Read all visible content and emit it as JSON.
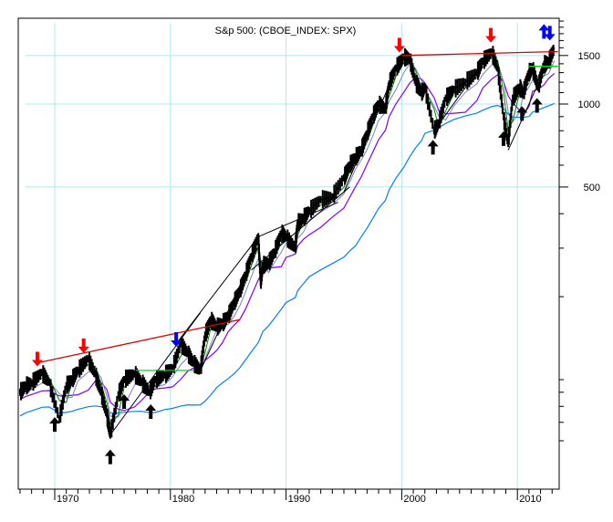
{
  "chart_data": {
    "type": "line",
    "title": "S&p 500: (CBOE_INDEX: SPX)",
    "xlabel": "",
    "ylabel": "",
    "y_scale": "log",
    "ylim": [
      40,
      2050
    ],
    "xlim": [
      1966.9,
      2013.5
    ],
    "grid": true,
    "x_tick_labels": [
      "1970",
      "1980",
      "1990",
      "2000",
      "2010"
    ],
    "y_tick_labels": [
      "1500",
      "1000",
      "500"
    ],
    "x_ticks": [
      1970,
      1980,
      1990,
      2000,
      2010
    ],
    "y_ticks": [
      1500,
      1000,
      500
    ],
    "colors": {
      "price": "#000000",
      "ma_short": "#008000",
      "ma_medium": "#8080c0",
      "ma_long": "#8000ff",
      "ma_very_long": "#0080ff",
      "resistance_line": "#e00000",
      "support_line_green": "#00e000",
      "trend_lines": "#000000",
      "grid": "#b0e8f0",
      "arrow_red": "#ff0000",
      "arrow_blue": "#0000ff",
      "arrow_black": "#000000"
    },
    "series": [
      {
        "name": "SPX price",
        "x": [
          1967.0,
          1967.5,
          1968.0,
          1968.9,
          1969.5,
          1970.4,
          1971.0,
          1971.5,
          1972.0,
          1972.9,
          1973.5,
          1974.0,
          1974.5,
          1974.8,
          1975.5,
          1976.0,
          1976.9,
          1977.5,
          1978.2,
          1978.7,
          1979.5,
          1980.2,
          1980.9,
          1981.5,
          1982.0,
          1982.6,
          1983.0,
          1983.5,
          1984.0,
          1984.5,
          1985.0,
          1985.5,
          1986.0,
          1986.5,
          1987.0,
          1987.6,
          1987.8,
          1988.0,
          1988.5,
          1989.0,
          1989.6,
          1990.0,
          1990.8,
          1991.0,
          1991.5,
          1992.0,
          1993.0,
          1994.0,
          1995.0,
          1995.5,
          1996.0,
          1996.5,
          1997.0,
          1997.5,
          1998.0,
          1998.6,
          1998.9,
          1999.5,
          2000.2,
          2000.7,
          2001.2,
          2001.7,
          2002.0,
          2002.8,
          2003.2,
          2003.8,
          2004.5,
          2005.5,
          2006.5,
          2007.0,
          2007.8,
          2008.3,
          2008.8,
          2009.2,
          2009.6,
          2010.2,
          2010.5,
          2011.0,
          2011.3,
          2011.8,
          2012.3,
          2012.7,
          2013.2
        ],
        "values": [
          90,
          95,
          97,
          106,
          98,
          72,
          95,
          100,
          108,
          119,
          105,
          90,
          75,
          63,
          88,
          100,
          105,
          98,
          90,
          100,
          104,
          110,
          135,
          125,
          115,
          108,
          145,
          165,
          155,
          160,
          170,
          190,
          210,
          240,
          280,
          330,
          225,
          260,
          265,
          290,
          340,
          330,
          300,
          370,
          385,
          410,
          450,
          460,
          540,
          600,
          640,
          680,
          780,
          900,
          1000,
          960,
          1180,
          1350,
          1480,
          1460,
          1200,
          1100,
          1150,
          800,
          850,
          1050,
          1130,
          1200,
          1300,
          1430,
          1540,
          1350,
          900,
          720,
          1050,
          1150,
          1090,
          1300,
          1350,
          1150,
          1390,
          1420,
          1600
        ]
      }
    ],
    "annotations": {
      "red_down_arrows": [
        1968.5,
        1972.5,
        1999.8,
        2007.7
      ],
      "blue_down_arrows": [
        1980.5,
        2012.8
      ],
      "blue_up_arrows": [
        2012.3
      ],
      "black_up_arrows": [
        1970.0,
        1974.8,
        1976.0,
        1978.3,
        2002.7,
        2008.8,
        2010.4,
        2011.7
      ],
      "red_resistance_lines": [
        {
          "x": [
            1968.5,
            1986.0
          ],
          "y": [
            115,
            165
          ]
        },
        {
          "x": [
            2000.0,
            2013.5
          ],
          "y": [
            1500,
            1550
          ]
        }
      ],
      "green_horizontal_lines": [
        {
          "x": [
            1977.0,
            1982.0
          ],
          "y": [
            108,
            108
          ]
        },
        {
          "x": [
            2011.0,
            2013.5
          ],
          "y": [
            1370,
            1370
          ]
        }
      ]
    }
  }
}
